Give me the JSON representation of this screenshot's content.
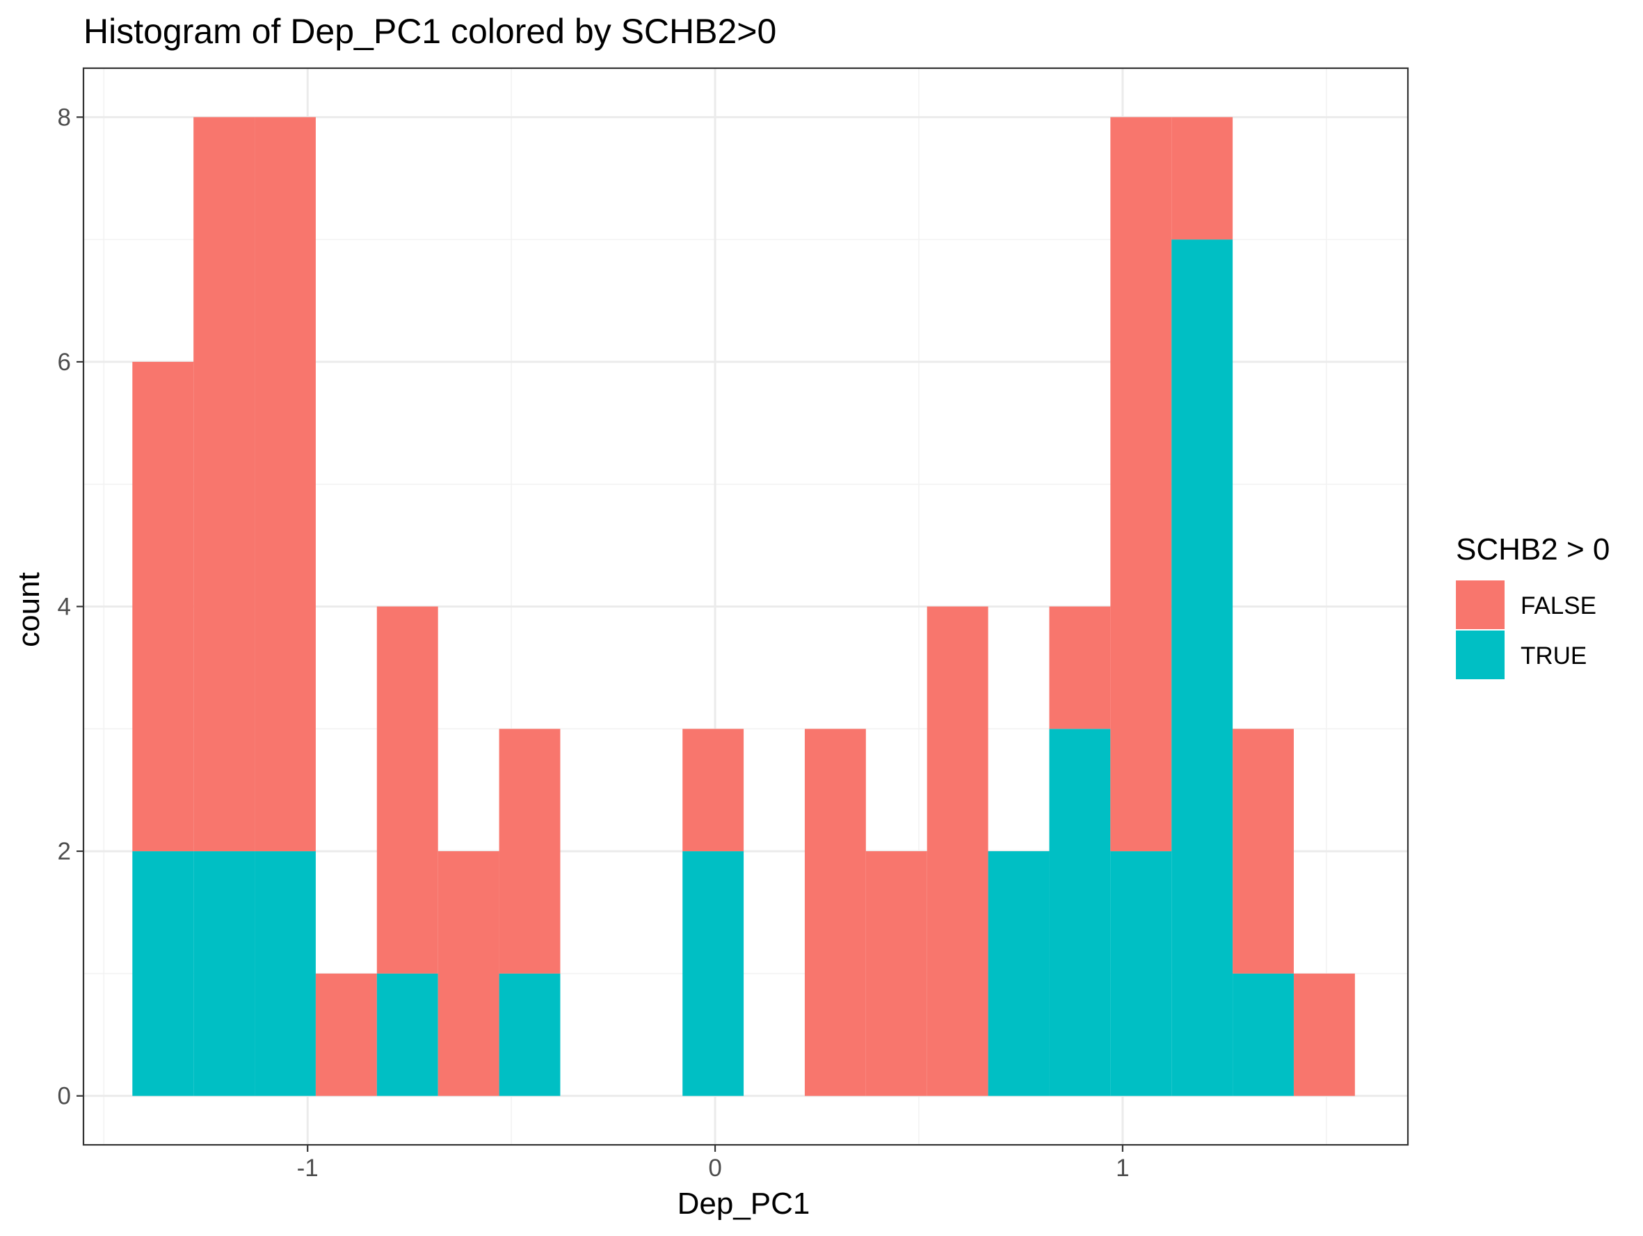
{
  "chart_data": {
    "type": "bar",
    "subtype": "stacked-histogram",
    "title": "Histogram of Dep_PC1 colored by SCHB2>0",
    "xlabel": "Dep_PC1",
    "ylabel": "count",
    "xlim": [
      -1.55,
      1.7
    ],
    "ylim": [
      -0.4,
      8.4
    ],
    "xticks": [
      -1,
      0,
      1
    ],
    "xtick_labels": [
      "-1",
      "0",
      "1"
    ],
    "yticks": [
      0,
      2,
      4,
      6,
      8
    ],
    "ytick_labels": [
      "0",
      "2",
      "4",
      "6",
      "8"
    ],
    "grid": true,
    "legend": {
      "title": "SCHB2 > 0",
      "position": "right"
    },
    "bin_width": 0.15,
    "bins": [
      {
        "x0": -1.43,
        "x1": -1.28
      },
      {
        "x0": -1.28,
        "x1": -1.13
      },
      {
        "x0": -1.13,
        "x1": -0.98
      },
      {
        "x0": -0.98,
        "x1": -0.83
      },
      {
        "x0": -0.83,
        "x1": -0.68
      },
      {
        "x0": -0.68,
        "x1": -0.53
      },
      {
        "x0": -0.53,
        "x1": -0.38
      },
      {
        "x0": -0.38,
        "x1": -0.23
      },
      {
        "x0": -0.23,
        "x1": -0.08
      },
      {
        "x0": -0.08,
        "x1": 0.07
      },
      {
        "x0": 0.07,
        "x1": 0.22
      },
      {
        "x0": 0.22,
        "x1": 0.37
      },
      {
        "x0": 0.37,
        "x1": 0.52
      },
      {
        "x0": 0.52,
        "x1": 0.67
      },
      {
        "x0": 0.67,
        "x1": 0.82
      },
      {
        "x0": 0.82,
        "x1": 0.97
      },
      {
        "x0": 0.97,
        "x1": 1.12
      },
      {
        "x0": 1.12,
        "x1": 1.27
      },
      {
        "x0": 1.27,
        "x1": 1.42
      },
      {
        "x0": 1.42,
        "x1": 1.57
      }
    ],
    "series": [
      {
        "name": "TRUE",
        "color": "#00BFC4",
        "values": [
          2,
          2,
          2,
          0,
          1,
          0,
          1,
          0,
          0,
          2,
          0,
          0,
          0,
          0,
          2,
          3,
          2,
          7,
          1,
          0
        ]
      },
      {
        "name": "FALSE",
        "color": "#F8766D",
        "values": [
          4,
          6,
          6,
          1,
          3,
          2,
          2,
          0,
          0,
          1,
          0,
          3,
          2,
          4,
          0,
          1,
          6,
          1,
          2,
          1
        ]
      }
    ]
  }
}
